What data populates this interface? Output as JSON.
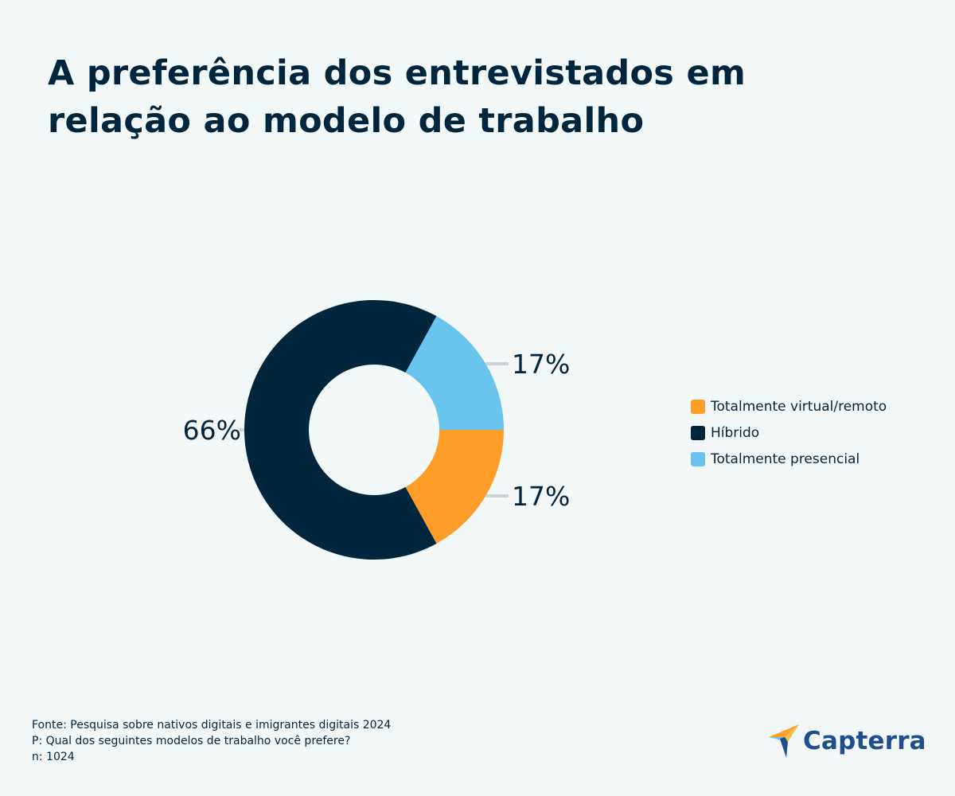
{
  "title": "A preferência dos entrevistados em relação ao modelo de trabalho",
  "chart_data": {
    "type": "donut",
    "series": [
      {
        "name": "Totalmente virtual/remoto",
        "value": 17,
        "label": "17%",
        "color": "#ff9d28"
      },
      {
        "name": "Híbrido",
        "value": 66,
        "label": "66%",
        "color": "#00263e"
      },
      {
        "name": "Totalmente presencial",
        "value": 17,
        "label": "17%",
        "color": "#6ac5ee"
      }
    ],
    "legend_position": "right"
  },
  "footer": {
    "source": "Fonte: Pesquisa sobre nativos digitais e imigrantes digitais 2024",
    "question": "P: Qual dos seguintes modelos de trabalho você prefere?",
    "sample": "n: 1024"
  },
  "logo": {
    "text": "Capterra"
  }
}
